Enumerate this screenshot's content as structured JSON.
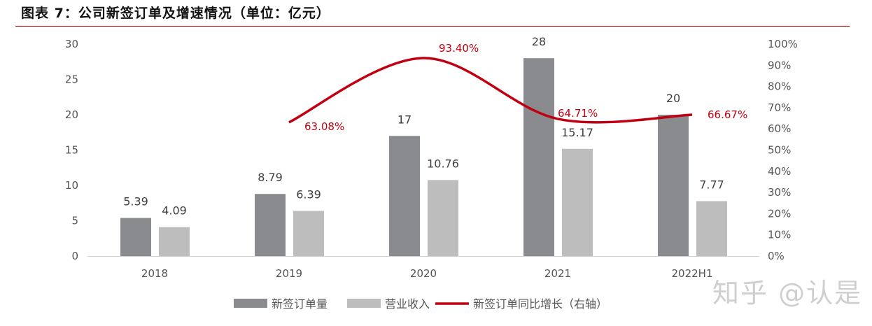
{
  "title": "图表 7：公司新签订单及增速情况（单位：亿元）",
  "watermark": "知乎 @认是",
  "colors": {
    "new_orders": "#898b8e",
    "revenue": "#bdbdbd",
    "growth": "#c00010",
    "rule": "#c00000"
  },
  "chart_data": {
    "type": "bar+line",
    "categories": [
      "2018",
      "2019",
      "2020",
      "2021",
      "2022H1"
    ],
    "series": [
      {
        "name": "新签订单量",
        "type": "bar",
        "axis": "left",
        "values": [
          5.39,
          8.79,
          17,
          28,
          20
        ],
        "labels": [
          "5.39",
          "8.79",
          "17",
          "28",
          "20"
        ]
      },
      {
        "name": "营业收入",
        "type": "bar",
        "axis": "left",
        "values": [
          4.09,
          6.39,
          10.76,
          15.17,
          7.77
        ],
        "labels": [
          "4.09",
          "6.39",
          "10.76",
          "15.17",
          "7.77"
        ]
      },
      {
        "name": "新签订单同比增长（右轴）",
        "type": "line",
        "axis": "right",
        "values": [
          null,
          63.08,
          93.4,
          64.71,
          66.67
        ],
        "labels": [
          null,
          "63.08%",
          "93.40%",
          "64.71%",
          "66.67%"
        ]
      }
    ],
    "left_axis": {
      "ylim": [
        0,
        30
      ],
      "ticks": [
        "0",
        "5",
        "10",
        "15",
        "20",
        "25",
        "30"
      ]
    },
    "right_axis": {
      "ylim": [
        0,
        100
      ],
      "ticks": [
        "0%",
        "10%",
        "20%",
        "30%",
        "40%",
        "50%",
        "60%",
        "70%",
        "80%",
        "90%",
        "100%"
      ]
    },
    "legend": {
      "placement": "bottom",
      "items": [
        "新签订单量",
        "营业收入",
        "新签订单同比增长（右轴）"
      ]
    },
    "grid": false
  }
}
